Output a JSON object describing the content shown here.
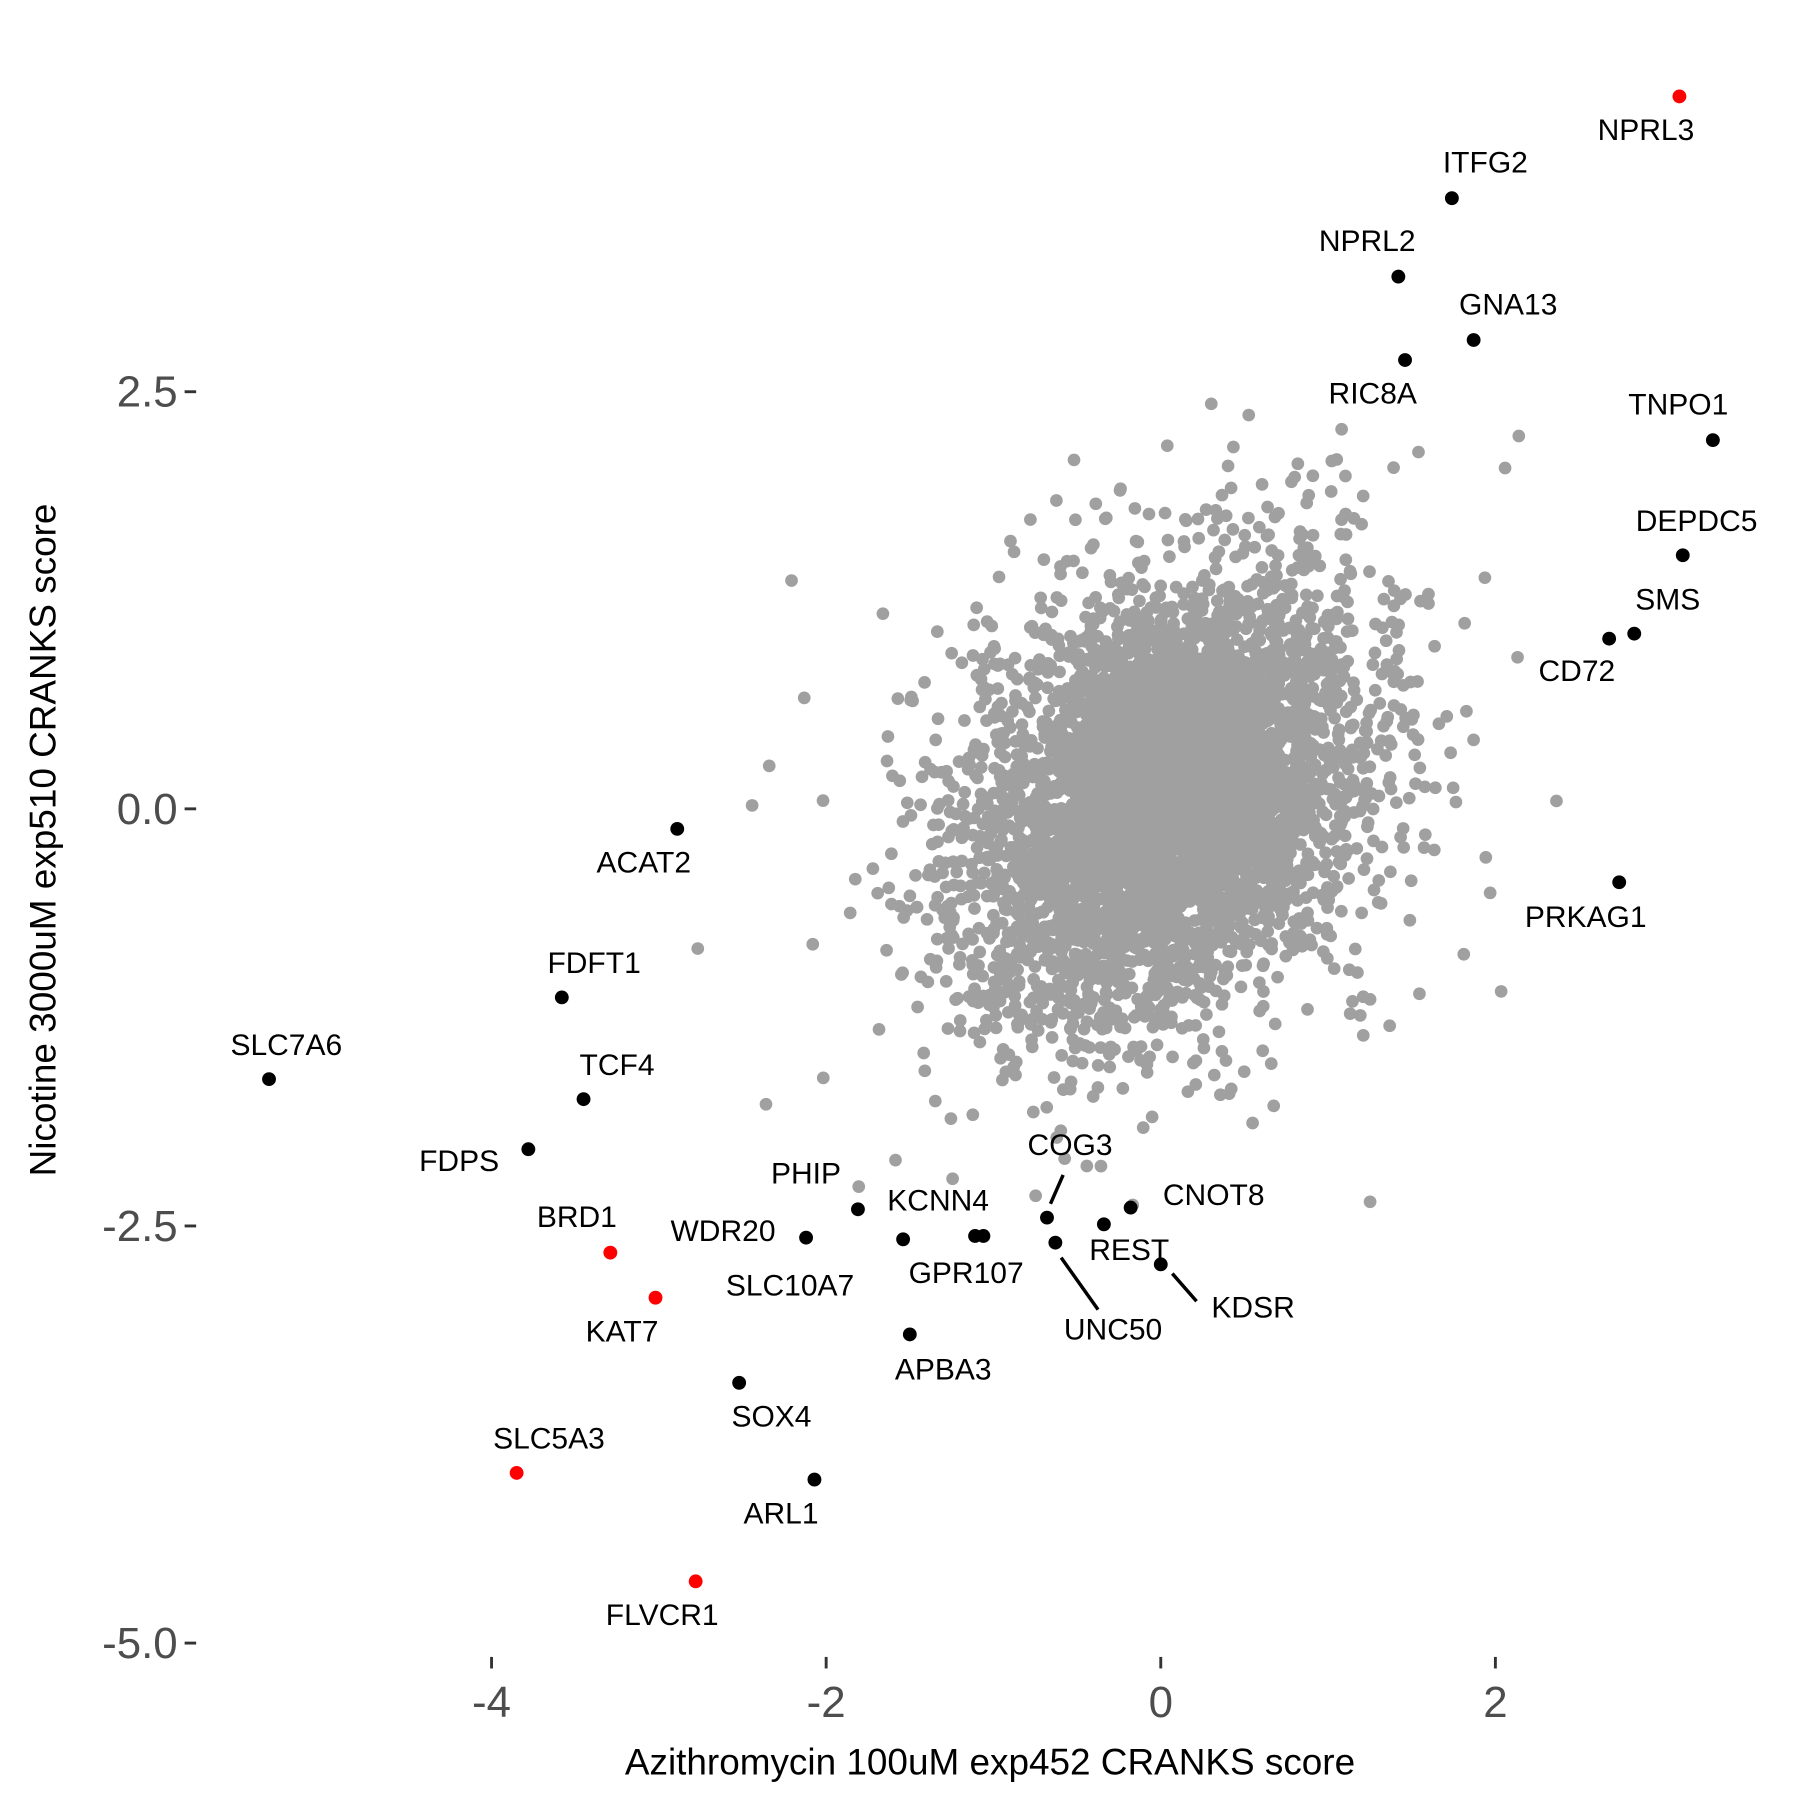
{
  "chart_data": {
    "type": "scatter",
    "title": "",
    "xlabel": "Azithromycin 100uM exp452 CRANKS score",
    "ylabel": "Nicotine 3000uM exp510 CRANKS score",
    "xlim": [
      -5.5,
      3.6
    ],
    "ylim": [
      -5.1,
      4.7
    ],
    "x_ticks": [
      -4,
      -2,
      0,
      2
    ],
    "x_tick_labels": [
      "-4",
      "-2",
      "0",
      "2"
    ],
    "y_ticks": [
      -5,
      -2.5,
      0,
      2.5
    ],
    "y_tick_labels": [
      "-5.0",
      "-2.5",
      "0.0",
      "2.5"
    ],
    "grid": false,
    "legend": "none",
    "colors": {
      "background_genes": "#a0a0a0",
      "labeled": "#000000",
      "highlighted": "#ff0000",
      "tick_text": "#4d4d4d"
    },
    "background_genes": "many gray points clustered around (0, 0), positively correlated",
    "labeled_points": [
      {
        "gene": "NPRL3",
        "x": 3.1,
        "y": 4.27,
        "highlight": true
      },
      {
        "gene": "ITFG2",
        "x": 1.74,
        "y": 3.66,
        "highlight": false
      },
      {
        "gene": "NPRL2",
        "x": 1.42,
        "y": 3.19,
        "highlight": false
      },
      {
        "gene": "GNA13",
        "x": 1.87,
        "y": 2.81,
        "highlight": false
      },
      {
        "gene": "RIC8A",
        "x": 1.46,
        "y": 2.69,
        "highlight": false
      },
      {
        "gene": "TNPO1",
        "x": 3.3,
        "y": 2.21,
        "highlight": false
      },
      {
        "gene": "DEPDC5",
        "x": 3.12,
        "y": 1.52,
        "highlight": false
      },
      {
        "gene": "SMS",
        "x": 2.83,
        "y": 1.05,
        "highlight": false
      },
      {
        "gene": "CD72",
        "x": 2.68,
        "y": 1.02,
        "highlight": false
      },
      {
        "gene": "PRKAG1",
        "x": 2.74,
        "y": -0.44,
        "highlight": false
      },
      {
        "gene": "ACAT2",
        "x": -2.89,
        "y": -0.12,
        "highlight": false
      },
      {
        "gene": "FDFT1",
        "x": -3.58,
        "y": -1.13,
        "highlight": false
      },
      {
        "gene": "SLC7A6",
        "x": -5.33,
        "y": -1.62,
        "highlight": false
      },
      {
        "gene": "TCF4",
        "x": -3.45,
        "y": -1.74,
        "highlight": false
      },
      {
        "gene": "FDPS",
        "x": -3.78,
        "y": -2.04,
        "highlight": false
      },
      {
        "gene": "BRD1",
        "x": -3.29,
        "y": -2.66,
        "highlight": true
      },
      {
        "gene": "KAT7",
        "x": -3.02,
        "y": -2.93,
        "highlight": true
      },
      {
        "gene": "SLC5A3",
        "x": -3.85,
        "y": -3.98,
        "highlight": true
      },
      {
        "gene": "FLVCR1",
        "x": -2.78,
        "y": -4.63,
        "highlight": true
      },
      {
        "gene": "SOX4",
        "x": -2.52,
        "y": -3.44,
        "highlight": false
      },
      {
        "gene": "ARL1",
        "x": -2.07,
        "y": -4.02,
        "highlight": false
      },
      {
        "gene": "APBA3",
        "x": -1.5,
        "y": -3.15,
        "highlight": false
      },
      {
        "gene": "WDR20",
        "x": -2.12,
        "y": -2.57,
        "highlight": false
      },
      {
        "gene": "PHIP",
        "x": -1.81,
        "y": -2.4,
        "highlight": false
      },
      {
        "gene": "SLC10A7",
        "x": -1.54,
        "y": -2.58,
        "highlight": false
      },
      {
        "gene": "KCNN4",
        "x": -1.11,
        "y": -2.56,
        "highlight": false
      },
      {
        "gene": "GPR107",
        "x": -1.06,
        "y": -2.56,
        "highlight": false
      },
      {
        "gene": "COG3",
        "x": -0.68,
        "y": -2.45,
        "highlight": false
      },
      {
        "gene": "UNC50",
        "x": -0.63,
        "y": -2.6,
        "highlight": false
      },
      {
        "gene": "REST",
        "x": -0.34,
        "y": -2.49,
        "highlight": false
      },
      {
        "gene": "CNOT8",
        "x": -0.18,
        "y": -2.39,
        "highlight": false
      },
      {
        "gene": "KDSR",
        "x": 0.0,
        "y": -2.73,
        "highlight": false
      }
    ]
  }
}
